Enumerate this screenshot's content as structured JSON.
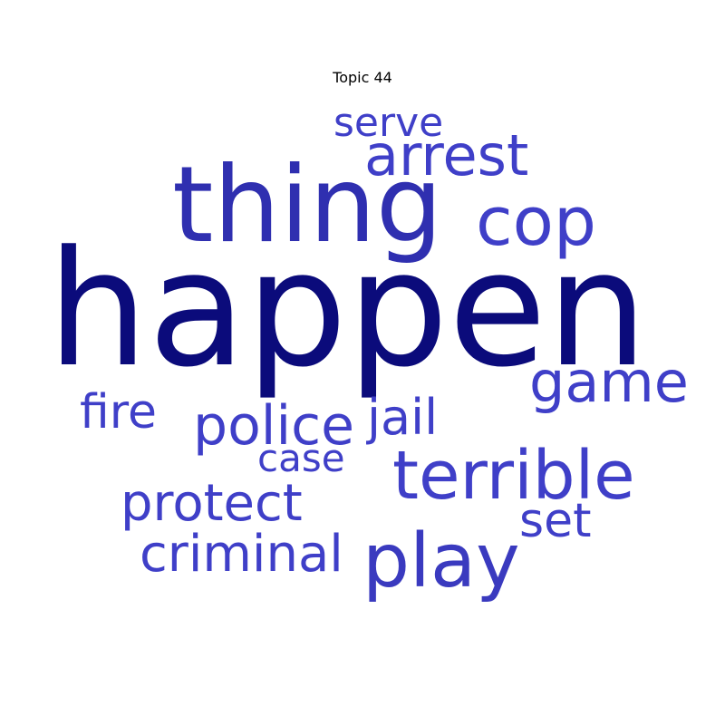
{
  "chart_data": {
    "type": "wordcloud",
    "title": "Topic 44",
    "colors": {
      "dominant": "#0b0b7b",
      "high": "#2f2fb0",
      "normal": "#3f3fc8"
    },
    "words": [
      {
        "text": "happen",
        "weight": 1.0,
        "color": "#0b0b7b"
      },
      {
        "text": "thing",
        "weight": 0.62,
        "color": "#2f2fb0"
      },
      {
        "text": "play",
        "weight": 0.45,
        "color": "#3a3abf"
      },
      {
        "text": "terrible",
        "weight": 0.4,
        "color": "#3f3fc8"
      },
      {
        "text": "cop",
        "weight": 0.4,
        "color": "#3f3fc8"
      },
      {
        "text": "arrest",
        "weight": 0.36,
        "color": "#3f3fc8"
      },
      {
        "text": "game",
        "weight": 0.36,
        "color": "#3f3fc8"
      },
      {
        "text": "police",
        "weight": 0.36,
        "color": "#3f3fc8"
      },
      {
        "text": "protect",
        "weight": 0.32,
        "color": "#3f3fc8"
      },
      {
        "text": "criminal",
        "weight": 0.32,
        "color": "#3f3fc8"
      },
      {
        "text": "fire",
        "weight": 0.3,
        "color": "#3f3fc8"
      },
      {
        "text": "jail",
        "weight": 0.3,
        "color": "#3f3fc8"
      },
      {
        "text": "set",
        "weight": 0.28,
        "color": "#3f3fc8"
      },
      {
        "text": "serve",
        "weight": 0.25,
        "color": "#3f3fc8"
      },
      {
        "text": "case",
        "weight": 0.24,
        "color": "#3f3fc8"
      }
    ]
  }
}
